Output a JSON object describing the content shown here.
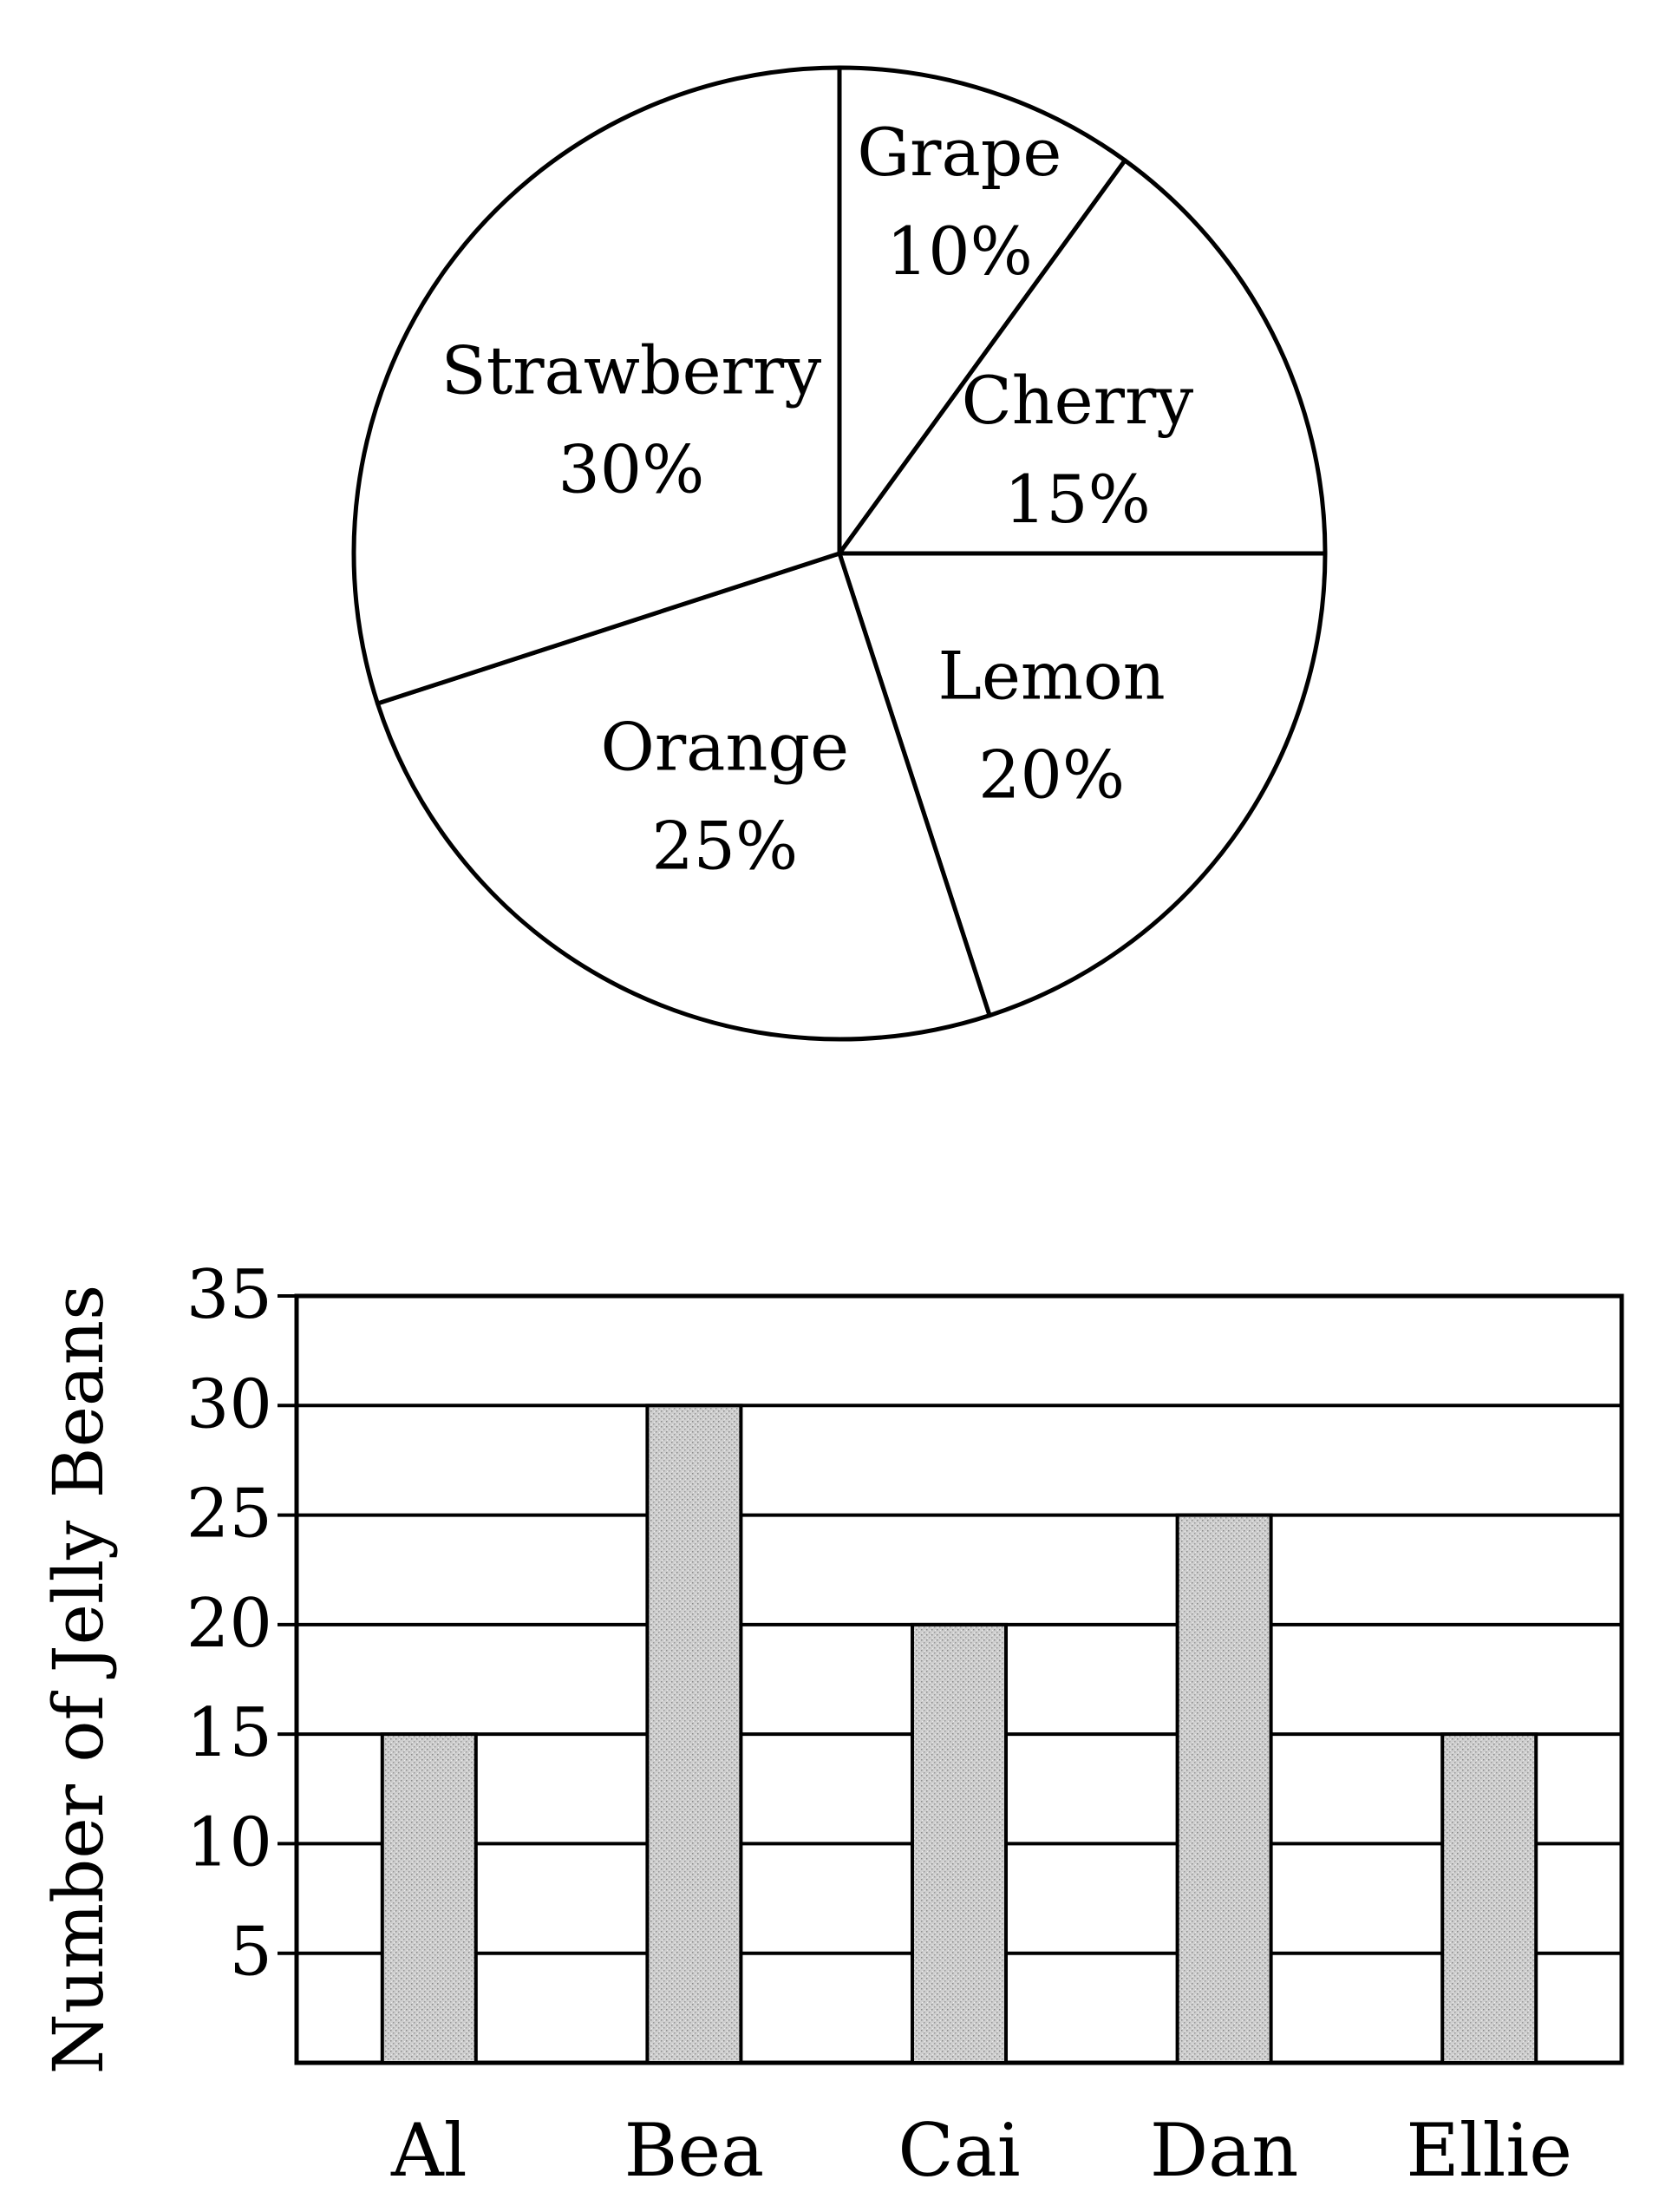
{
  "chart_data": [
    {
      "type": "pie",
      "categories": [
        "Grape",
        "Cherry",
        "Lemon",
        "Orange",
        "Strawberry"
      ],
      "values": [
        10,
        15,
        20,
        25,
        30
      ],
      "value_labels": [
        "10%",
        "15%",
        "20%",
        "25%",
        "30%"
      ],
      "colors": [
        "#ffffff"
      ],
      "stroke_color": "#000000"
    },
    {
      "type": "bar",
      "categories": [
        "Al",
        "Bea",
        "Cai",
        "Dan",
        "Ellie"
      ],
      "values": [
        15,
        30,
        20,
        25,
        15
      ],
      "ylabel": "Number of Jelly Beans",
      "xlabel": "",
      "ylim": [
        0,
        35
      ],
      "yticks": [
        5,
        10,
        15,
        20,
        25,
        30,
        35
      ],
      "grid": true,
      "bar_color": "#c8c8c8",
      "stroke_color": "#000000"
    }
  ]
}
